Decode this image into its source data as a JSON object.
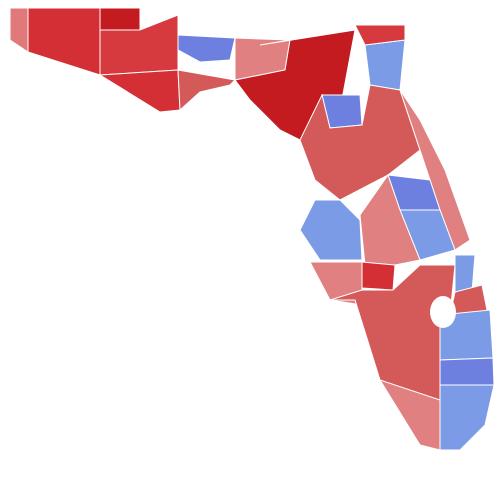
{
  "regions": [
    {
      "color": "#e07a7a"
    },
    {
      "color": "#d42f35"
    },
    {
      "color": "#c31b20"
    },
    {
      "color": "#d63a3e"
    },
    {
      "color": "#6d80e0"
    },
    {
      "color": "#e08080"
    },
    {
      "color": "#c31b20"
    },
    {
      "color": "#6d80e0"
    },
    {
      "color": "#7b9be6"
    },
    {
      "color": "#d63a3e"
    },
    {
      "color": "#d45a5a"
    },
    {
      "color": "#e08080"
    },
    {
      "color": "#6d80e0"
    },
    {
      "color": "#7b9be6"
    },
    {
      "color": "#7b9be6"
    },
    {
      "color": "#e08080"
    },
    {
      "color": "#d42f35"
    },
    {
      "color": "#e08080"
    },
    {
      "color": "#d45a5a"
    },
    {
      "color": "#7b9be6"
    },
    {
      "color": "#d45a5a"
    },
    {
      "color": "#7b9be6"
    },
    {
      "color": "#6d80e0"
    },
    {
      "color": "#7b9be6"
    },
    {
      "color": "#e08080"
    },
    {
      "color": "#d42f35"
    },
    {
      "color": "#d45a5a"
    }
  ]
}
